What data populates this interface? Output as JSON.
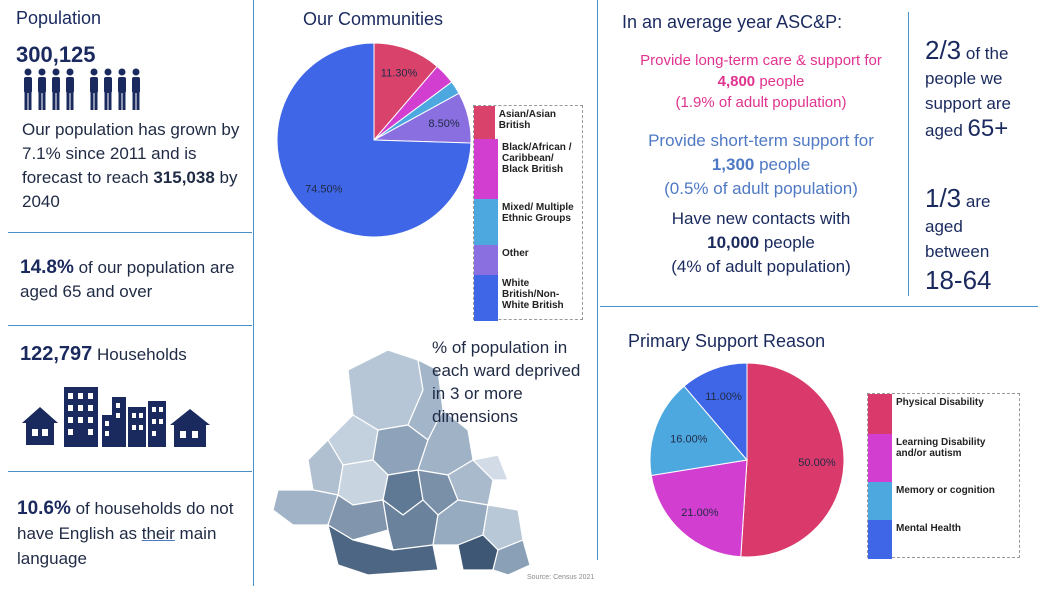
{
  "population": {
    "heading": "Population",
    "total": "300,125",
    "growth_pre": "Our population has grown by 7.1% since 2011 and is forecast to reach ",
    "growth_value": "315,038",
    "growth_post": " by 2040"
  },
  "aged": {
    "value": "14.8%",
    "text": " of our population are aged 65 and over"
  },
  "households": {
    "value": "122,797",
    "text": " Households"
  },
  "english": {
    "value": "10.6%",
    "text_pre": " of households do not have English as ",
    "underlined": "their",
    "text_post": " main language"
  },
  "communities": {
    "title": "Our Communities"
  },
  "map": {
    "caption": "% of population in each ward deprived in 3 or more dimensions",
    "source": "Source: Census 2021"
  },
  "asc": {
    "title": "In an average year ASC&P:",
    "long_term_pre": "Provide long-term care & support for",
    "long_term_value": "4,800",
    "long_term_unit": " people",
    "long_term_note": "(1.9% of adult population)",
    "short_term_pre": "Provide short-term support for",
    "short_term_value": "1,300",
    "short_term_unit": " people",
    "short_term_note": "(0.5% of adult population)",
    "contacts_pre": "Have new contacts with",
    "contacts_value": "10,000",
    "contacts_unit": " people",
    "contacts_note": "(4% of adult population)"
  },
  "ages": {
    "two_thirds": "2/3",
    "two_thirds_text1": " of the",
    "two_thirds_text2": "people we",
    "two_thirds_text3": "support are",
    "two_thirds_text4": "aged ",
    "two_thirds_age": "65+",
    "one_third": "1/3",
    "one_third_text1": " are",
    "one_third_text2": "aged",
    "one_third_text3": "between",
    "one_third_age": "18-64"
  },
  "support": {
    "title": "Primary Support Reason"
  },
  "chart_data": [
    {
      "type": "pie",
      "title": "Our Communities",
      "categories": [
        "Asian/Asian British",
        "Black/African/Caribbean/Black British",
        "Mixed/Multiple Ethnic Groups",
        "Other",
        "White British/Non-White British"
      ],
      "legend_labels": [
        "Asian/Asian British",
        "Black/African / Caribbean/ Black British",
        "Mixed/ Multiple Ethnic Groups",
        "Other",
        "White British/Non- White British"
      ],
      "values": [
        11.3,
        3.5,
        2.2,
        8.5,
        74.5
      ],
      "data_labels": [
        "11.30%",
        "",
        "",
        "8.50%",
        "74.50%"
      ],
      "colors": [
        "#d9436b",
        "#d23fd0",
        "#4ea8e0",
        "#8a6fe0",
        "#3f66e6"
      ],
      "legend": "right"
    },
    {
      "type": "pie",
      "title": "Primary Support Reason",
      "categories": [
        "Physical Disability",
        "Learning Disability and/or autism",
        "Memory or cognition",
        "Mental Health"
      ],
      "values": [
        50,
        21,
        16,
        11
      ],
      "data_labels": [
        "50.00%",
        "21.00%",
        "16.00%",
        "11.00%"
      ],
      "colors": [
        "#d93a6b",
        "#d23fd0",
        "#4ea8e0",
        "#3f66e6"
      ],
      "legend": "right"
    }
  ]
}
